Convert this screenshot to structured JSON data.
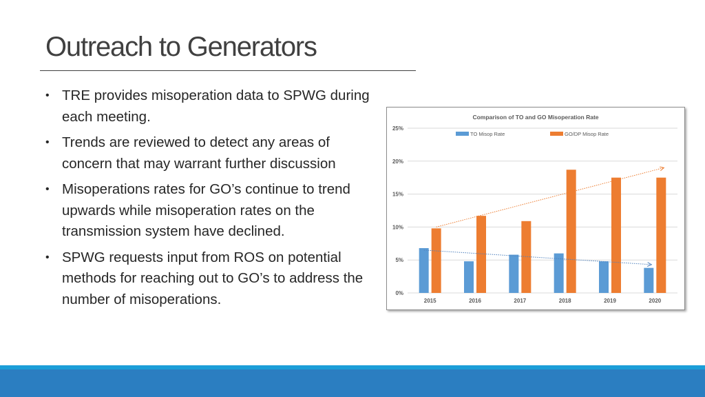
{
  "slide": {
    "title": "Outreach to Generators",
    "bullets": [
      "TRE provides misoperation data to SPWG during each meeting.",
      "Trends are reviewed to detect any areas of concern that may warrant further discussion",
      "Misoperations rates for GO’s continue to trend upwards while misoperation rates on the transmission system have declined.",
      "SPWG requests input from ROS on potential methods for reaching out to GO’s to address the number of misoperations."
    ]
  },
  "chart_data": {
    "type": "bar",
    "title": "Comparison of TO and GO Misoperation Rate",
    "categories": [
      "2015",
      "2016",
      "2017",
      "2018",
      "2019",
      "2020"
    ],
    "series": [
      {
        "name": "TO Misop Rate",
        "color": "#5b9bd5",
        "values": [
          6.8,
          4.8,
          5.8,
          6.0,
          4.8,
          3.8
        ]
      },
      {
        "name": "GO/DP Misop Rate",
        "color": "#ed7d31",
        "values": [
          9.8,
          11.7,
          10.9,
          18.7,
          17.5,
          17.5
        ]
      }
    ],
    "ylim": [
      0,
      25
    ],
    "yticks": [
      "0%",
      "5%",
      "10%",
      "15%",
      "20%",
      "25%"
    ],
    "ytick_values": [
      0,
      5,
      10,
      15,
      20,
      25
    ],
    "xlabel": "",
    "ylabel": "",
    "grid": true,
    "legend": "top",
    "trendlines": [
      {
        "series": "TO Misop Rate",
        "color": "#4f81bd",
        "from": 6.5,
        "to": 4.3
      },
      {
        "series": "GO/DP Misop Rate",
        "color": "#ed7d31",
        "from": 10.0,
        "to": 19.0
      }
    ]
  }
}
